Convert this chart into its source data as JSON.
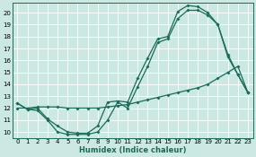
{
  "background_color": "#cce8e3",
  "grid_color": "#b8d8d2",
  "line_color": "#1a6b5a",
  "xlabel": "Humidex (Indice chaleur)",
  "ylim": [
    9.5,
    20.8
  ],
  "xlim": [
    -0.5,
    23.5
  ],
  "yticks": [
    10,
    11,
    12,
    13,
    14,
    15,
    16,
    17,
    18,
    19,
    20
  ],
  "xticks": [
    0,
    1,
    2,
    3,
    4,
    5,
    6,
    7,
    8,
    9,
    10,
    11,
    12,
    13,
    14,
    15,
    16,
    17,
    18,
    19,
    20,
    21,
    22,
    23
  ],
  "series1": {
    "x": [
      0,
      1,
      2,
      3,
      4,
      5,
      6,
      7,
      8,
      9,
      10,
      11,
      12,
      13,
      14,
      15,
      16,
      17,
      18,
      19,
      20,
      21,
      22,
      23
    ],
    "y": [
      12.4,
      11.9,
      12.0,
      11.1,
      10.5,
      10.0,
      9.9,
      9.9,
      10.5,
      12.5,
      12.6,
      12.5,
      14.5,
      16.2,
      17.8,
      18.0,
      20.1,
      20.6,
      20.5,
      20.0,
      19.0,
      16.5,
      14.8,
      13.3
    ]
  },
  "series2": {
    "x": [
      0,
      1,
      2,
      3,
      4,
      5,
      6,
      7,
      8,
      9,
      10,
      11,
      12,
      13,
      14,
      15,
      16,
      17,
      18,
      19,
      20,
      21,
      22,
      23
    ],
    "y": [
      12.4,
      11.9,
      11.8,
      11.0,
      10.0,
      9.8,
      9.8,
      9.8,
      10.0,
      11.0,
      12.5,
      12.0,
      13.8,
      15.5,
      17.5,
      17.8,
      19.5,
      20.2,
      20.2,
      19.8,
      19.0,
      16.3,
      14.8,
      13.3
    ]
  },
  "series3": {
    "x": [
      0,
      1,
      2,
      3,
      4,
      5,
      6,
      7,
      8,
      9,
      10,
      11,
      12,
      13,
      14,
      15,
      16,
      17,
      18,
      19,
      20,
      21,
      22,
      23
    ],
    "y": [
      12.0,
      12.0,
      12.1,
      12.1,
      12.1,
      12.0,
      12.0,
      12.0,
      12.0,
      12.1,
      12.2,
      12.3,
      12.5,
      12.7,
      12.9,
      13.1,
      13.3,
      13.5,
      13.7,
      14.0,
      14.5,
      15.0,
      15.5,
      13.3
    ]
  }
}
